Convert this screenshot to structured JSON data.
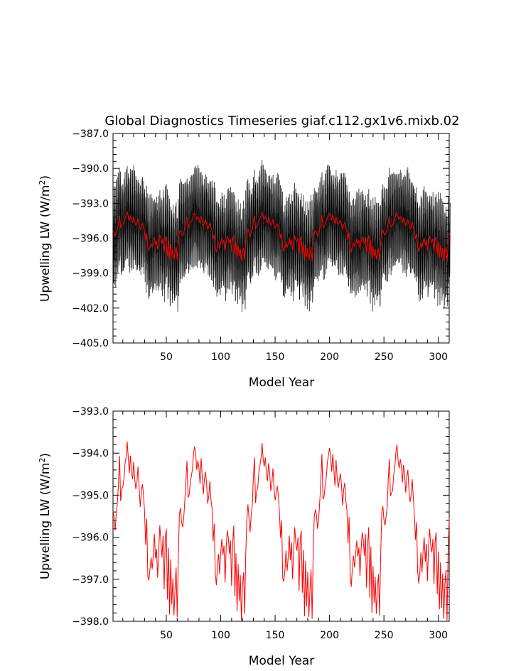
{
  "chart_data": [
    {
      "type": "line",
      "title": "Global Diagnostics Timeseries giaf.c112.gx1v6.mixb.02",
      "xlabel": "Model Year",
      "ylabel": "Upwelling LW (W/m",
      "ylabel_sup": "2",
      "ylabel_end": ")",
      "xlim": [
        1,
        310
      ],
      "ylim": [
        -405.0,
        -387.0
      ],
      "xticks": [
        50,
        100,
        150,
        200,
        250,
        300
      ],
      "yticks": [
        -405.0,
        -402.0,
        -399.0,
        -396.0,
        -393.0,
        -390.0,
        -387.0
      ],
      "ytick_labels": [
        "−405.0",
        "−402.0",
        "−399.0",
        "−396.0",
        "−393.0",
        "−390.0",
        "−387.0"
      ],
      "series": [
        {
          "color": "#000000",
          "resolution": "monthly",
          "seasonal_amplitude": 3.6
        },
        {
          "color": "#ff0000",
          "resolution": "annual"
        }
      ]
    },
    {
      "type": "line",
      "xlabel": "Model Year",
      "ylabel": "Upwelling LW (W/m",
      "ylabel_sup": "2",
      "ylabel_end": ")",
      "xlim": [
        1,
        310
      ],
      "ylim": [
        -398.0,
        -393.0
      ],
      "xticks": [
        50,
        100,
        150,
        200,
        250,
        300
      ],
      "yticks": [
        -398.0,
        -397.0,
        -396.0,
        -395.0,
        -394.0,
        -393.0
      ],
      "ytick_labels": [
        "−398.0",
        "−397.0",
        "−396.0",
        "−395.0",
        "−394.0",
        "−393.0"
      ],
      "series": [
        {
          "color": "#ff0000",
          "resolution": "annual",
          "cycle_years": 62,
          "cycles": 5,
          "cycle_keypoints": [
            [
              0,
              -395.3
            ],
            [
              2,
              -395.8
            ],
            [
              4,
              -395.2
            ],
            [
              6,
              -394.1
            ],
            [
              7,
              -395.1
            ],
            [
              9,
              -394.8
            ],
            [
              11,
              -394.3
            ],
            [
              13,
              -393.8
            ],
            [
              15,
              -394.4
            ],
            [
              16,
              -394.1
            ],
            [
              18,
              -394.7
            ],
            [
              19,
              -394.2
            ],
            [
              21,
              -394.9
            ],
            [
              23,
              -394.4
            ],
            [
              25,
              -395.2
            ],
            [
              27,
              -394.7
            ],
            [
              29,
              -395.4
            ],
            [
              30,
              -396.1
            ],
            [
              31,
              -395.6
            ],
            [
              32,
              -396.9
            ],
            [
              33,
              -397.1
            ],
            [
              35,
              -396.4
            ],
            [
              36,
              -396.8
            ],
            [
              38,
              -396.0
            ],
            [
              39,
              -396.5
            ],
            [
              40,
              -396.2
            ],
            [
              41,
              -397.0
            ],
            [
              42,
              -396.3
            ],
            [
              43,
              -395.8
            ],
            [
              45,
              -396.4
            ],
            [
              46,
              -396.0
            ],
            [
              47,
              -397.2
            ],
            [
              48,
              -396.1
            ],
            [
              49,
              -395.8
            ],
            [
              50,
              -397.4
            ],
            [
              51,
              -396.3
            ],
            [
              52,
              -397.8
            ],
            [
              53,
              -396.6
            ],
            [
              54,
              -397.6
            ],
            [
              55,
              -396.9
            ],
            [
              56,
              -397.9
            ],
            [
              57,
              -397.2
            ],
            [
              58,
              -396.8
            ],
            [
              59,
              -397.9
            ],
            [
              60,
              -396.4
            ],
            [
              61,
              -395.5
            ],
            [
              62,
              -395.3
            ]
          ]
        }
      ]
    }
  ]
}
